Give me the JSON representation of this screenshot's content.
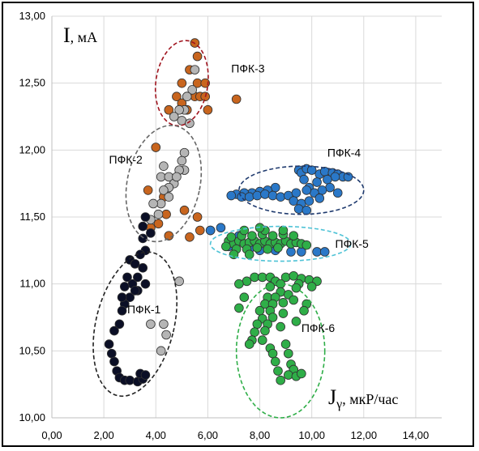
{
  "chart_data": {
    "type": "scatter",
    "xlim": [
      0,
      15
    ],
    "ylim": [
      10,
      13
    ],
    "xticks": [
      "0,00",
      "2,00",
      "4,00",
      "6,00",
      "8,00",
      "10,00",
      "12,00",
      "14,00"
    ],
    "yticks": [
      "10,00",
      "10,50",
      "11,00",
      "11,50",
      "12,00",
      "12,50",
      "13,00"
    ],
    "grid": true,
    "xlabel": {
      "main": "J",
      "sub": "γ",
      "unit": ", мкР/час"
    },
    "ylabel": {
      "main": "I",
      "unit": ", мА"
    },
    "colors": {
      "black": "#0b0f26",
      "gray": "#b5b5b5",
      "orange": "#c8651e",
      "blue": "#2a78c8",
      "green": "#2fae48"
    },
    "groups": [
      {
        "label": "ПФК-3",
        "ellipse": {
          "cx": 5.0,
          "cy": 12.5,
          "rx": 1.0,
          "ry": 0.32,
          "color": "#a0141e"
        }
      },
      {
        "label": "ПФК-2",
        "ellipse": {
          "cx": 4.3,
          "cy": 11.75,
          "rx": 1.4,
          "ry": 0.44,
          "color": "#666666"
        }
      },
      {
        "label": "ПФК-4",
        "ellipse": {
          "cx": 9.6,
          "cy": 11.7,
          "rx": 2.4,
          "ry": 0.18,
          "color": "#1f3a6e"
        }
      },
      {
        "label": "ПФК-5",
        "ellipse": {
          "cx": 8.8,
          "cy": 11.3,
          "rx": 2.7,
          "ry": 0.13,
          "color": "#4fc3d6"
        }
      },
      {
        "label": "ПФК-1",
        "ellipse": {
          "cx": 3.2,
          "cy": 10.7,
          "rx": 1.5,
          "ry": 0.55,
          "color": "#222222"
        }
      },
      {
        "label": "ПФК-6",
        "ellipse": {
          "cx": 8.8,
          "cy": 10.5,
          "rx": 1.7,
          "ry": 0.5,
          "color": "#2fae48"
        }
      }
    ],
    "series": [
      {
        "color": "orange",
        "points": [
          [
            5.5,
            12.8
          ],
          [
            5.6,
            12.7
          ],
          [
            5.3,
            12.6
          ],
          [
            5.6,
            12.5
          ],
          [
            5.9,
            12.5
          ],
          [
            5.0,
            12.5
          ],
          [
            4.8,
            12.4
          ],
          [
            5.5,
            12.4
          ],
          [
            5.7,
            12.4
          ],
          [
            5.9,
            12.4
          ],
          [
            5.2,
            12.3
          ],
          [
            4.5,
            12.3
          ],
          [
            5.0,
            12.35
          ],
          [
            6.0,
            12.3
          ],
          [
            7.1,
            12.38
          ],
          [
            4.0,
            12.02
          ],
          [
            3.7,
            11.7
          ],
          [
            4.3,
            11.65
          ],
          [
            4.4,
            11.52
          ],
          [
            5.1,
            11.55
          ],
          [
            5.6,
            11.5
          ],
          [
            4.1,
            11.45
          ],
          [
            5.7,
            11.4
          ],
          [
            3.8,
            11.42
          ],
          [
            5.3,
            11.35
          ],
          [
            6.1,
            11.4
          ],
          [
            4.5,
            11.36
          ]
        ]
      },
      {
        "color": "gray",
        "points": [
          [
            5.5,
            12.6
          ],
          [
            5.4,
            12.45
          ],
          [
            5.2,
            12.4
          ],
          [
            5.1,
            12.3
          ],
          [
            4.9,
            12.3
          ],
          [
            5.0,
            12.22
          ],
          [
            5.3,
            12.2
          ],
          [
            4.7,
            12.25
          ],
          [
            5.2,
            12.4
          ],
          [
            5.1,
            11.98
          ],
          [
            5.0,
            11.92
          ],
          [
            5.1,
            11.85
          ],
          [
            4.9,
            11.85
          ],
          [
            4.3,
            11.88
          ],
          [
            4.2,
            11.8
          ],
          [
            4.5,
            11.8
          ],
          [
            4.7,
            11.75
          ],
          [
            4.8,
            11.8
          ],
          [
            4.5,
            11.72
          ],
          [
            4.3,
            11.7
          ],
          [
            4.5,
            11.65
          ],
          [
            4.2,
            11.6
          ],
          [
            3.9,
            11.6
          ],
          [
            4.1,
            11.52
          ],
          [
            3.8,
            11.48
          ],
          [
            4.3,
            10.7
          ],
          [
            3.8,
            10.7
          ],
          [
            4.2,
            10.5
          ],
          [
            4.9,
            11.02
          ],
          [
            4.4,
            10.62
          ]
        ]
      },
      {
        "color": "black",
        "points": [
          [
            3.6,
            11.5
          ],
          [
            3.5,
            11.43
          ],
          [
            3.8,
            11.38
          ],
          [
            3.5,
            11.34
          ],
          [
            3.6,
            11.25
          ],
          [
            3.4,
            11.22
          ],
          [
            3.0,
            11.18
          ],
          [
            3.2,
            11.15
          ],
          [
            3.5,
            11.12
          ],
          [
            2.9,
            11.05
          ],
          [
            3.1,
            11.0
          ],
          [
            2.8,
            10.98
          ],
          [
            3.3,
            10.95
          ],
          [
            3.0,
            10.9
          ],
          [
            2.8,
            10.85
          ],
          [
            2.7,
            10.8
          ],
          [
            2.6,
            10.7
          ],
          [
            2.4,
            10.65
          ],
          [
            2.2,
            10.55
          ],
          [
            2.3,
            10.48
          ],
          [
            2.4,
            10.42
          ],
          [
            2.5,
            10.35
          ],
          [
            2.6,
            10.3
          ],
          [
            2.8,
            10.28
          ],
          [
            3.0,
            10.28
          ],
          [
            3.3,
            10.27
          ],
          [
            3.5,
            10.29
          ],
          [
            3.4,
            10.33
          ],
          [
            3.6,
            10.32
          ],
          [
            2.7,
            10.9
          ],
          [
            3.3,
            11.05
          ],
          [
            3.2,
            10.95
          ],
          [
            3.6,
            11.0
          ]
        ]
      },
      {
        "color": "blue",
        "points": [
          [
            9.5,
            11.85
          ],
          [
            9.6,
            11.83
          ],
          [
            9.8,
            11.86
          ],
          [
            10.0,
            11.85
          ],
          [
            10.3,
            11.82
          ],
          [
            10.5,
            11.84
          ],
          [
            10.8,
            11.83
          ],
          [
            11.0,
            11.82
          ],
          [
            11.2,
            11.8
          ],
          [
            11.4,
            11.8
          ],
          [
            10.9,
            11.8
          ],
          [
            10.6,
            11.78
          ],
          [
            9.7,
            11.78
          ],
          [
            10.2,
            11.76
          ],
          [
            10.7,
            11.72
          ],
          [
            11.0,
            11.68
          ],
          [
            10.4,
            11.7
          ],
          [
            9.9,
            11.72
          ],
          [
            10.1,
            11.68
          ],
          [
            8.6,
            11.72
          ],
          [
            8.3,
            11.7
          ],
          [
            8.0,
            11.69
          ],
          [
            7.7,
            11.68
          ],
          [
            7.4,
            11.68
          ],
          [
            7.1,
            11.67
          ],
          [
            6.9,
            11.66
          ],
          [
            7.3,
            11.65
          ],
          [
            7.6,
            11.65
          ],
          [
            7.9,
            11.66
          ],
          [
            8.2,
            11.67
          ],
          [
            8.5,
            11.66
          ],
          [
            8.8,
            11.65
          ],
          [
            9.1,
            11.66
          ],
          [
            9.4,
            11.68
          ],
          [
            9.8,
            11.7
          ],
          [
            9.3,
            11.62
          ],
          [
            9.6,
            11.6
          ],
          [
            9.9,
            11.62
          ],
          [
            10.3,
            11.64
          ],
          [
            9.5,
            11.56
          ],
          [
            9.8,
            11.55
          ],
          [
            6.5,
            11.42
          ],
          [
            6.1,
            11.4
          ],
          [
            7.2,
            11.36
          ],
          [
            8.0,
            11.25
          ],
          [
            8.6,
            11.25
          ],
          [
            9.2,
            11.24
          ],
          [
            9.6,
            11.24
          ],
          [
            10.2,
            11.24
          ],
          [
            10.5,
            11.24
          ],
          [
            7.6,
            11.26
          ],
          [
            6.8,
            11.28
          ]
        ]
      },
      {
        "color": "green",
        "points": [
          [
            6.8,
            11.32
          ],
          [
            7.0,
            11.3
          ],
          [
            7.2,
            11.32
          ],
          [
            7.4,
            11.3
          ],
          [
            7.6,
            11.31
          ],
          [
            7.8,
            11.32
          ],
          [
            8.0,
            11.3
          ],
          [
            8.2,
            11.32
          ],
          [
            8.4,
            11.3
          ],
          [
            8.6,
            11.31
          ],
          [
            8.8,
            11.3
          ],
          [
            9.0,
            11.32
          ],
          [
            9.2,
            11.3
          ],
          [
            9.4,
            11.31
          ],
          [
            9.6,
            11.3
          ],
          [
            9.8,
            11.29
          ],
          [
            7.1,
            11.26
          ],
          [
            7.5,
            11.26
          ],
          [
            7.9,
            11.27
          ],
          [
            8.3,
            11.26
          ],
          [
            8.7,
            11.27
          ],
          [
            6.9,
            11.35
          ],
          [
            7.3,
            11.36
          ],
          [
            7.7,
            11.36
          ],
          [
            8.1,
            11.37
          ],
          [
            8.5,
            11.36
          ],
          [
            8.9,
            11.37
          ],
          [
            9.3,
            11.36
          ],
          [
            6.7,
            11.28
          ],
          [
            8.2,
            11.4
          ],
          [
            8.9,
            11.4
          ],
          [
            7.4,
            11.4
          ],
          [
            7.0,
            11.22
          ],
          [
            7.6,
            11.22
          ],
          [
            8.0,
            11.42
          ],
          [
            7.5,
            11.02
          ],
          [
            7.8,
            11.05
          ],
          [
            8.1,
            11.05
          ],
          [
            8.4,
            11.05
          ],
          [
            8.6,
            11.02
          ],
          [
            9.0,
            11.05
          ],
          [
            9.3,
            11.06
          ],
          [
            9.6,
            11.04
          ],
          [
            9.9,
            11.03
          ],
          [
            10.2,
            11.02
          ],
          [
            7.2,
            11.0
          ],
          [
            8.8,
            11.0
          ],
          [
            9.5,
            11.0
          ],
          [
            8.4,
            10.98
          ],
          [
            8.8,
            10.94
          ],
          [
            9.4,
            10.97
          ],
          [
            8.3,
            10.9
          ],
          [
            8.6,
            10.9
          ],
          [
            9.1,
            10.92
          ],
          [
            8.2,
            10.85
          ],
          [
            8.5,
            10.85
          ],
          [
            8.9,
            10.86
          ],
          [
            9.3,
            10.88
          ],
          [
            9.8,
            10.85
          ],
          [
            10.0,
            10.98
          ],
          [
            8.0,
            10.8
          ],
          [
            8.4,
            10.8
          ],
          [
            8.9,
            10.78
          ],
          [
            8.1,
            10.74
          ],
          [
            8.5,
            10.75
          ],
          [
            9.4,
            10.72
          ],
          [
            7.9,
            10.7
          ],
          [
            8.3,
            10.7
          ],
          [
            8.8,
            10.68
          ],
          [
            7.8,
            10.64
          ],
          [
            8.2,
            10.65
          ],
          [
            7.7,
            10.58
          ],
          [
            8.1,
            10.58
          ],
          [
            7.6,
            10.55
          ],
          [
            9.0,
            10.55
          ],
          [
            8.4,
            10.52
          ],
          [
            8.5,
            10.48
          ],
          [
            9.1,
            10.48
          ],
          [
            9.2,
            10.4
          ],
          [
            8.6,
            10.42
          ],
          [
            9.3,
            10.36
          ],
          [
            8.7,
            10.35
          ],
          [
            9.1,
            10.32
          ],
          [
            9.4,
            10.31
          ],
          [
            8.8,
            10.28
          ],
          [
            9.6,
            10.33
          ],
          [
            7.2,
            10.82
          ],
          [
            7.4,
            10.9
          ],
          [
            9.7,
            10.8
          ]
        ]
      }
    ],
    "labels": [
      {
        "text": "ПФК-3",
        "x": 6.9,
        "y": 12.58
      },
      {
        "text": "ПФК-2",
        "x": 2.2,
        "y": 11.9
      },
      {
        "text": "ПФК-4",
        "x": 10.6,
        "y": 11.95
      },
      {
        "text": "ПФК-5",
        "x": 10.9,
        "y": 11.27
      },
      {
        "text": "ПФК-1",
        "x": 2.9,
        "y": 10.78
      },
      {
        "text": "ПФК-6",
        "x": 9.6,
        "y": 10.64
      }
    ]
  }
}
